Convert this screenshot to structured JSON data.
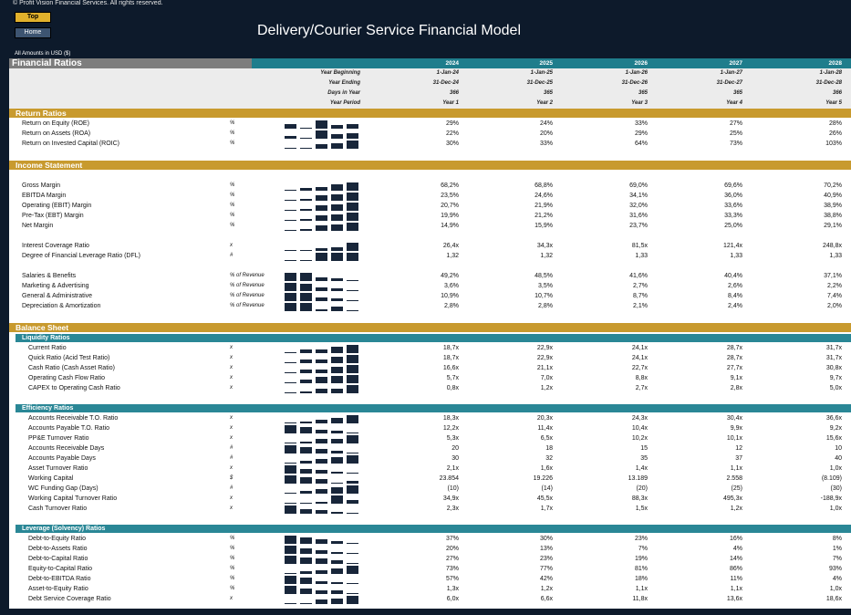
{
  "header": {
    "copyright": "© Profit Vision Financial Services. All rights reserved.",
    "top_button": "Top",
    "home_button": "Home",
    "title": "Delivery/Courier Service Financial Model",
    "amounts_note": "All Amounts in  USD ($)"
  },
  "table": {
    "title": "Financial Ratios",
    "years": [
      "2024",
      "2025",
      "2026",
      "2027",
      "2028"
    ],
    "meta_rows": [
      {
        "label": "Year Beginning",
        "values": [
          "1-Jan-24",
          "1-Jan-25",
          "1-Jan-26",
          "1-Jan-27",
          "1-Jan-28"
        ]
      },
      {
        "label": "Year Ending",
        "values": [
          "31-Dec-24",
          "31-Dec-25",
          "31-Dec-26",
          "31-Dec-27",
          "31-Dec-28"
        ]
      },
      {
        "label": "Days in Year",
        "values": [
          "366",
          "365",
          "365",
          "365",
          "366"
        ]
      },
      {
        "label": "Year Period",
        "values": [
          "Year 1",
          "Year 2",
          "Year 3",
          "Year 4",
          "Year 5"
        ]
      }
    ]
  },
  "sections": [
    {
      "type": "section",
      "label": "Return Ratios"
    },
    {
      "type": "row",
      "label": "Return on Equity (ROE)",
      "unit": "%",
      "values": [
        "29%",
        "24%",
        "33%",
        "27%",
        "28%"
      ],
      "spark": [
        29,
        24,
        33,
        27,
        28
      ]
    },
    {
      "type": "row",
      "label": "Return on Assets (ROA)",
      "unit": "%",
      "values": [
        "22%",
        "20%",
        "29%",
        "25%",
        "26%"
      ],
      "spark": [
        22,
        20,
        29,
        25,
        26
      ]
    },
    {
      "type": "row",
      "label": "Return on Invested Capital (ROIC)",
      "unit": "%",
      "values": [
        "30%",
        "33%",
        "64%",
        "73%",
        "103%"
      ],
      "spark": [
        30,
        33,
        64,
        73,
        103
      ]
    },
    {
      "type": "gap"
    },
    {
      "type": "section",
      "label": "Income Statement"
    },
    {
      "type": "gap"
    },
    {
      "type": "row",
      "label": "Gross Margin",
      "unit": "%",
      "values": [
        "68,2%",
        "68,8%",
        "69,0%",
        "69,6%",
        "70,2%"
      ],
      "spark": [
        68.2,
        68.8,
        69.0,
        69.6,
        70.2
      ]
    },
    {
      "type": "row",
      "label": "EBITDA Margin",
      "unit": "%",
      "values": [
        "23,5%",
        "24,6%",
        "34,1%",
        "36,0%",
        "40,9%"
      ],
      "spark": [
        23.5,
        24.6,
        34.1,
        36.0,
        40.9
      ]
    },
    {
      "type": "row",
      "label": "Operating (EBIT) Margin",
      "unit": "%",
      "values": [
        "20,7%",
        "21,9%",
        "32,0%",
        "33,6%",
        "38,9%"
      ],
      "spark": [
        20.7,
        21.9,
        32.0,
        33.6,
        38.9
      ]
    },
    {
      "type": "row",
      "label": "Pre-Tax (EBT) Margin",
      "unit": "%",
      "values": [
        "19,9%",
        "21,2%",
        "31,6%",
        "33,3%",
        "38,8%"
      ],
      "spark": [
        19.9,
        21.2,
        31.6,
        33.3,
        38.8
      ]
    },
    {
      "type": "row",
      "label": "Net Margin",
      "unit": "%",
      "values": [
        "14,9%",
        "15,9%",
        "23,7%",
        "25,0%",
        "29,1%"
      ],
      "spark": [
        14.9,
        15.9,
        23.7,
        25.0,
        29.1
      ]
    },
    {
      "type": "gap"
    },
    {
      "type": "row",
      "label": "Interest Coverage Ratio",
      "unit": "x",
      "values": [
        "26,4x",
        "34,3x",
        "81,5x",
        "121,4x",
        "248,8x"
      ],
      "spark": [
        26.4,
        34.3,
        81.5,
        121.4,
        248.8
      ]
    },
    {
      "type": "row",
      "label": "Degree of Financial Leverage Ratio (DFL)",
      "unit": "#",
      "values": [
        "1,32",
        "1,32",
        "1,33",
        "1,33",
        "1,33"
      ],
      "spark": [
        1.32,
        1.32,
        1.33,
        1.33,
        1.33
      ]
    },
    {
      "type": "gap"
    },
    {
      "type": "row",
      "label": "Salaries & Benefits",
      "unit": "% of Revenue",
      "values": [
        "49,2%",
        "48,5%",
        "41,6%",
        "40,4%",
        "37,1%"
      ],
      "spark": [
        49.2,
        48.5,
        41.6,
        40.4,
        37.1
      ]
    },
    {
      "type": "row",
      "label": "Marketing & Advertising",
      "unit": "% of Revenue",
      "values": [
        "3,6%",
        "3,5%",
        "2,7%",
        "2,6%",
        "2,2%"
      ],
      "spark": [
        3.6,
        3.5,
        2.7,
        2.6,
        2.2
      ]
    },
    {
      "type": "row",
      "label": "General & Administrative",
      "unit": "% of Revenue",
      "values": [
        "10,9%",
        "10,7%",
        "8,7%",
        "8,4%",
        "7,4%"
      ],
      "spark": [
        10.9,
        10.7,
        8.7,
        8.4,
        7.4
      ]
    },
    {
      "type": "row",
      "label": "Depreciation & Amortization",
      "unit": "% of Revenue",
      "values": [
        "2,8%",
        "2,8%",
        "2,1%",
        "2,4%",
        "2,0%"
      ],
      "spark": [
        2.8,
        2.8,
        2.1,
        2.4,
        2.0
      ]
    },
    {
      "type": "gap"
    },
    {
      "type": "section",
      "label": "Balance Sheet"
    },
    {
      "type": "sub",
      "label": "Liquidity Ratios"
    },
    {
      "type": "row",
      "label": "Current Ratio",
      "unit": "x",
      "indent": true,
      "values": [
        "18,7x",
        "22,9x",
        "24,1x",
        "28,7x",
        "31,7x"
      ],
      "spark": [
        18.7,
        22.9,
        24.1,
        28.7,
        31.7
      ]
    },
    {
      "type": "row",
      "label": "Quick Ratio (Acid Test Ratio)",
      "unit": "x",
      "indent": true,
      "values": [
        "18,7x",
        "22,9x",
        "24,1x",
        "28,7x",
        "31,7x"
      ],
      "spark": [
        18.7,
        22.9,
        24.1,
        28.7,
        31.7
      ]
    },
    {
      "type": "row",
      "label": "Cash Ratio (Cash Asset Ratio)",
      "unit": "x",
      "indent": true,
      "values": [
        "16,6x",
        "21,1x",
        "22,7x",
        "27,7x",
        "30,8x"
      ],
      "spark": [
        16.6,
        21.1,
        22.7,
        27.7,
        30.8
      ]
    },
    {
      "type": "row",
      "label": "Operating Cash Flow Ratio",
      "unit": "x",
      "indent": true,
      "values": [
        "5,7x",
        "7,0x",
        "8,8x",
        "9,1x",
        "9,7x"
      ],
      "spark": [
        5.7,
        7.0,
        8.8,
        9.1,
        9.7
      ]
    },
    {
      "type": "row",
      "label": "CAPEX to Operating Cash Ratio",
      "unit": "x",
      "indent": true,
      "values": [
        "0,8x",
        "1,2x",
        "2,7x",
        "2,8x",
        "5,0x"
      ],
      "spark": [
        0.8,
        1.2,
        2.7,
        2.8,
        5.0
      ]
    },
    {
      "type": "gap"
    },
    {
      "type": "sub",
      "label": "Efficiency Ratios"
    },
    {
      "type": "row",
      "label": "Accounts Receivable T.O. Ratio",
      "unit": "x",
      "indent": true,
      "values": [
        "18,3x",
        "20,3x",
        "24,3x",
        "30,4x",
        "36,6x"
      ],
      "spark": [
        18.3,
        20.3,
        24.3,
        30.4,
        36.6
      ]
    },
    {
      "type": "row",
      "label": "Accounts Payable T.O. Ratio",
      "unit": "x",
      "indent": true,
      "values": [
        "12,2x",
        "11,4x",
        "10,4x",
        "9,9x",
        "9,2x"
      ],
      "spark": [
        12.2,
        11.4,
        10.4,
        9.9,
        9.2
      ]
    },
    {
      "type": "row",
      "label": "PP&E Turnover Ratio",
      "unit": "x",
      "indent": true,
      "values": [
        "5,3x",
        "6,5x",
        "10,2x",
        "10,1x",
        "15,6x"
      ],
      "spark": [
        5.3,
        6.5,
        10.2,
        10.1,
        15.6
      ]
    },
    {
      "type": "row",
      "label": "Accounts Receivable Days",
      "unit": "#",
      "indent": true,
      "values": [
        "20",
        "18",
        "15",
        "12",
        "10"
      ],
      "spark": [
        20,
        18,
        15,
        12,
        10
      ]
    },
    {
      "type": "row",
      "label": "Accounts Payable Days",
      "unit": "#",
      "indent": true,
      "values": [
        "30",
        "32",
        "35",
        "37",
        "40"
      ],
      "spark": [
        30,
        32,
        35,
        37,
        40
      ]
    },
    {
      "type": "row",
      "label": "Asset Turnover Ratio",
      "unit": "x",
      "indent": true,
      "values": [
        "2,1x",
        "1,6x",
        "1,4x",
        "1,1x",
        "1,0x"
      ],
      "spark": [
        2.1,
        1.6,
        1.4,
        1.1,
        1.0
      ]
    },
    {
      "type": "row",
      "label": "Working Capital",
      "unit": "$",
      "indent": true,
      "values": [
        "23.854",
        "19.226",
        "13.189",
        "2.558",
        "(8.109)"
      ],
      "spark": [
        23854,
        19226,
        13189,
        2558,
        -8109
      ]
    },
    {
      "type": "row",
      "label": "WC Funding Gap (Days)",
      "unit": "#",
      "indent": true,
      "values": [
        "(10)",
        "(14)",
        "(20)",
        "(25)",
        "(30)"
      ],
      "spark": [
        -10,
        -14,
        -20,
        -25,
        -30
      ]
    },
    {
      "type": "row",
      "label": "Working Capital Turnover Ratio",
      "unit": "x",
      "indent": true,
      "values": [
        "34,9x",
        "45,5x",
        "88,3x",
        "495,3x",
        "-188,9x"
      ],
      "spark": [
        34.9,
        45.5,
        88.3,
        495.3,
        -188.9
      ]
    },
    {
      "type": "row",
      "label": "Cash Turnover Ratio",
      "unit": "x",
      "indent": true,
      "values": [
        "2,3x",
        "1,7x",
        "1,5x",
        "1,2x",
        "1,0x"
      ],
      "spark": [
        2.3,
        1.7,
        1.5,
        1.2,
        1.0
      ]
    },
    {
      "type": "gap"
    },
    {
      "type": "sub",
      "label": "Leverage (Solvency) Ratios"
    },
    {
      "type": "row",
      "label": "Debt-to-Equity Ratio",
      "unit": "%",
      "indent": true,
      "values": [
        "37%",
        "30%",
        "23%",
        "16%",
        "8%"
      ],
      "spark": [
        37,
        30,
        23,
        16,
        8
      ]
    },
    {
      "type": "row",
      "label": "Debt-to-Assets Ratio",
      "unit": "%",
      "indent": true,
      "values": [
        "20%",
        "13%",
        "7%",
        "4%",
        "1%"
      ],
      "spark": [
        20,
        13,
        7,
        4,
        1
      ]
    },
    {
      "type": "row",
      "label": "Debt-to-Capital Ratio",
      "unit": "%",
      "indent": true,
      "values": [
        "27%",
        "23%",
        "19%",
        "14%",
        "7%"
      ],
      "spark": [
        27,
        23,
        19,
        14,
        7
      ]
    },
    {
      "type": "row",
      "label": "Equity-to-Capital Ratio",
      "unit": "%",
      "indent": true,
      "values": [
        "73%",
        "77%",
        "81%",
        "86%",
        "93%"
      ],
      "spark": [
        73,
        77,
        81,
        86,
        93
      ]
    },
    {
      "type": "row",
      "label": "Debt-to-EBITDA Ratio",
      "unit": "%",
      "indent": true,
      "values": [
        "57%",
        "42%",
        "18%",
        "11%",
        "4%"
      ],
      "spark": [
        57,
        42,
        18,
        11,
        4
      ]
    },
    {
      "type": "row",
      "label": "Asset-to-Equity Ratio",
      "unit": "%",
      "indent": true,
      "values": [
        "1,3x",
        "1,2x",
        "1,1x",
        "1,1x",
        "1,0x"
      ],
      "spark": [
        1.3,
        1.2,
        1.1,
        1.1,
        1.0
      ]
    },
    {
      "type": "row",
      "label": "Debt Service Coverage Ratio",
      "unit": "x",
      "indent": true,
      "values": [
        "6,0x",
        "6,6x",
        "11,8x",
        "13,6x",
        "18,6x"
      ],
      "spark": [
        6.0,
        6.6,
        11.8,
        13.6,
        18.6
      ]
    }
  ]
}
